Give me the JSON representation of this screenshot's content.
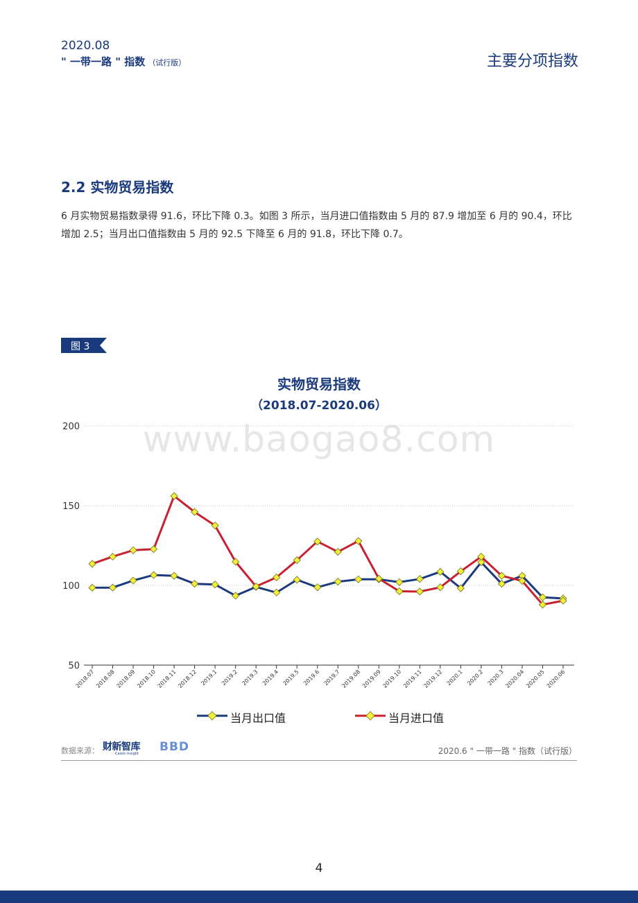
{
  "header": {
    "date": "2020.08",
    "name": "\" 一带一路 \" 指数",
    "name_sub": "（试行版）",
    "section": "主要分项指数"
  },
  "section": {
    "title": "2.2 实物贸易指数",
    "paragraph": "6 月实物贸易指数录得 91.6，环比下降 0.3。如图 3 所示，当月进口值指数由 5 月的 87.9 增加至 6 月的 90.4，环比增加 2.5；当月出口值指数由 5 月的 92.5 下降至 6 月的 91.8，环比下降 0.7。"
  },
  "figure": {
    "tag": "图 3"
  },
  "watermark": "www.baogao8.com",
  "chart_data": {
    "type": "line",
    "title": "实物贸易指数",
    "subtitle": "（2018.07-2020.06）",
    "categories": [
      "2018.07",
      "2018.08",
      "2018.09",
      "2018.10",
      "2018.11",
      "2018.12",
      "2019.1",
      "2019.2",
      "2019.3",
      "2019.4",
      "2019.5",
      "2019.6",
      "2019.7",
      "2019.08",
      "2019.09",
      "2019.10",
      "2019.11",
      "2019.12",
      "2020.1",
      "2020.2",
      "2020.3",
      "2020.04",
      "2020.05",
      "2020.06"
    ],
    "yticks": [
      200,
      150,
      100,
      50
    ],
    "ylim": [
      50,
      200
    ],
    "grid": true,
    "legend_position": "bottom",
    "series": [
      {
        "name": "当月出口值",
        "color": "#1a3a7e",
        "values": [
          98.5,
          98.6,
          103,
          106.5,
          106,
          101,
          100.5,
          93.5,
          99,
          95.5,
          103.5,
          98.8,
          102.3,
          103.8,
          103.8,
          102,
          104,
          108.5,
          98.2,
          114.5,
          101,
          106,
          92.5,
          91.8
        ]
      },
      {
        "name": "当月进口值",
        "color": "#c8202f",
        "values": [
          113.5,
          118,
          122,
          122.7,
          156,
          146,
          137.5,
          114.8,
          99.3,
          105,
          115.8,
          127.5,
          121,
          127.8,
          104.2,
          96.3,
          96.1,
          98.8,
          108.8,
          118,
          106,
          102.8,
          87.9,
          90.4
        ]
      }
    ]
  },
  "footer": {
    "source_label": "数据来源：",
    "logo1": "财新智库",
    "logo1_sub": "Caixin Insight",
    "logo2": "BBD",
    "right": "2020.6 \" 一带一路 \" 指数（试行版）"
  },
  "page_number": "4"
}
